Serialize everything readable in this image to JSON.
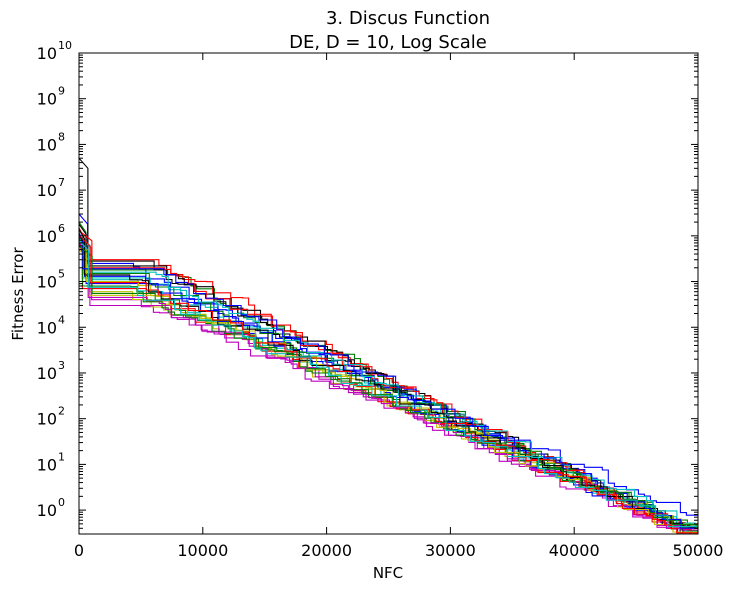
{
  "chart_data": {
    "type": "line",
    "title": "3.   Discus Function",
    "subtitle": "DE, D = 10, Log Scale",
    "xlabel": "NFC",
    "ylabel": "Fitness Error",
    "xlim": [
      0,
      50000
    ],
    "ylim": [
      0.3,
      10000000000
    ],
    "yscale": "log",
    "grid": false,
    "x_ticks": [
      {
        "value": 0,
        "label": "0"
      },
      {
        "value": 10000,
        "label": "10000"
      },
      {
        "value": 20000,
        "label": "20000"
      },
      {
        "value": 30000,
        "label": "30000"
      },
      {
        "value": 40000,
        "label": "40000"
      },
      {
        "value": 50000,
        "label": "50000"
      }
    ],
    "y_ticks": [
      {
        "value": 1,
        "base": "10",
        "exp": "0"
      },
      {
        "value": 10,
        "base": "10",
        "exp": "1"
      },
      {
        "value": 100,
        "base": "10",
        "exp": "2"
      },
      {
        "value": 1000,
        "base": "10",
        "exp": "3"
      },
      {
        "value": 10000,
        "base": "10",
        "exp": "4"
      },
      {
        "value": 100000,
        "base": "10",
        "exp": "5"
      },
      {
        "value": 1000000,
        "base": "10",
        "exp": "6"
      },
      {
        "value": 10000000,
        "base": "10",
        "exp": "7"
      },
      {
        "value": 100000000,
        "base": "10",
        "exp": "8"
      },
      {
        "value": 1000000000,
        "base": "10",
        "exp": "9"
      },
      {
        "value": 10000000000,
        "base": "10",
        "exp": "10"
      }
    ],
    "series": [
      {
        "color": "#0000ff",
        "start": 3000000,
        "plateau": 250000,
        "end": 0.45
      },
      {
        "color": "#008000",
        "start": 2000000,
        "plateau": 180000,
        "end": 0.42
      },
      {
        "color": "#ff0000",
        "start": 1500000,
        "plateau": 300000,
        "end": 0.4
      },
      {
        "color": "#00bfbf",
        "start": 1200000,
        "plateau": 120000,
        "end": 0.38
      },
      {
        "color": "#bf00bf",
        "start": 900000,
        "plateau": 40000,
        "end": 0.35
      },
      {
        "color": "#bfbf00",
        "start": 1000000,
        "plateau": 60000,
        "end": 0.5
      },
      {
        "color": "#000000",
        "start": 50000000,
        "plateau": 220000,
        "end": 0.36
      },
      {
        "color": "#0000ff",
        "start": 800000,
        "plateau": 90000,
        "end": 0.8
      },
      {
        "color": "#008000",
        "start": 1000000,
        "plateau": 150000,
        "end": 0.37
      },
      {
        "color": "#ff0000",
        "start": 700000,
        "plateau": 70000,
        "end": 0.39
      },
      {
        "color": "#00bfbf",
        "start": 900000,
        "plateau": 110000,
        "end": 0.41
      },
      {
        "color": "#bf00bf",
        "start": 600000,
        "plateau": 30000,
        "end": 0.34
      },
      {
        "color": "#bfbf00",
        "start": 500000,
        "plateau": 50000,
        "end": 0.43
      },
      {
        "color": "#000000",
        "start": 1800000,
        "plateau": 280000,
        "end": 0.38
      },
      {
        "color": "#0000ff",
        "start": 1100000,
        "plateau": 130000,
        "end": 0.36
      },
      {
        "color": "#008000",
        "start": 900000,
        "plateau": 80000,
        "end": 0.44
      },
      {
        "color": "#ff0000",
        "start": 1300000,
        "plateau": 200000,
        "end": 0.33
      },
      {
        "color": "#00bfbf",
        "start": 1000000,
        "plateau": 160000,
        "end": 0.47
      },
      {
        "color": "#bf00bf",
        "start": 700000,
        "plateau": 45000,
        "end": 0.4
      },
      {
        "color": "#bfbf00",
        "start": 800000,
        "plateau": 100000,
        "end": 0.36
      },
      {
        "color": "#000000",
        "start": 1400000,
        "plateau": 140000,
        "end": 0.42
      },
      {
        "color": "#0000ff",
        "start": 1200000,
        "plateau": 190000,
        "end": 0.39
      },
      {
        "color": "#008000",
        "start": 600000,
        "plateau": 55000,
        "end": 0.37
      },
      {
        "color": "#ff0000",
        "start": 1000000,
        "plateau": 95000,
        "end": 0.35
      },
      {
        "color": "#00bfbf",
        "start": 800000,
        "plateau": 75000,
        "end": 0.41
      }
    ]
  }
}
